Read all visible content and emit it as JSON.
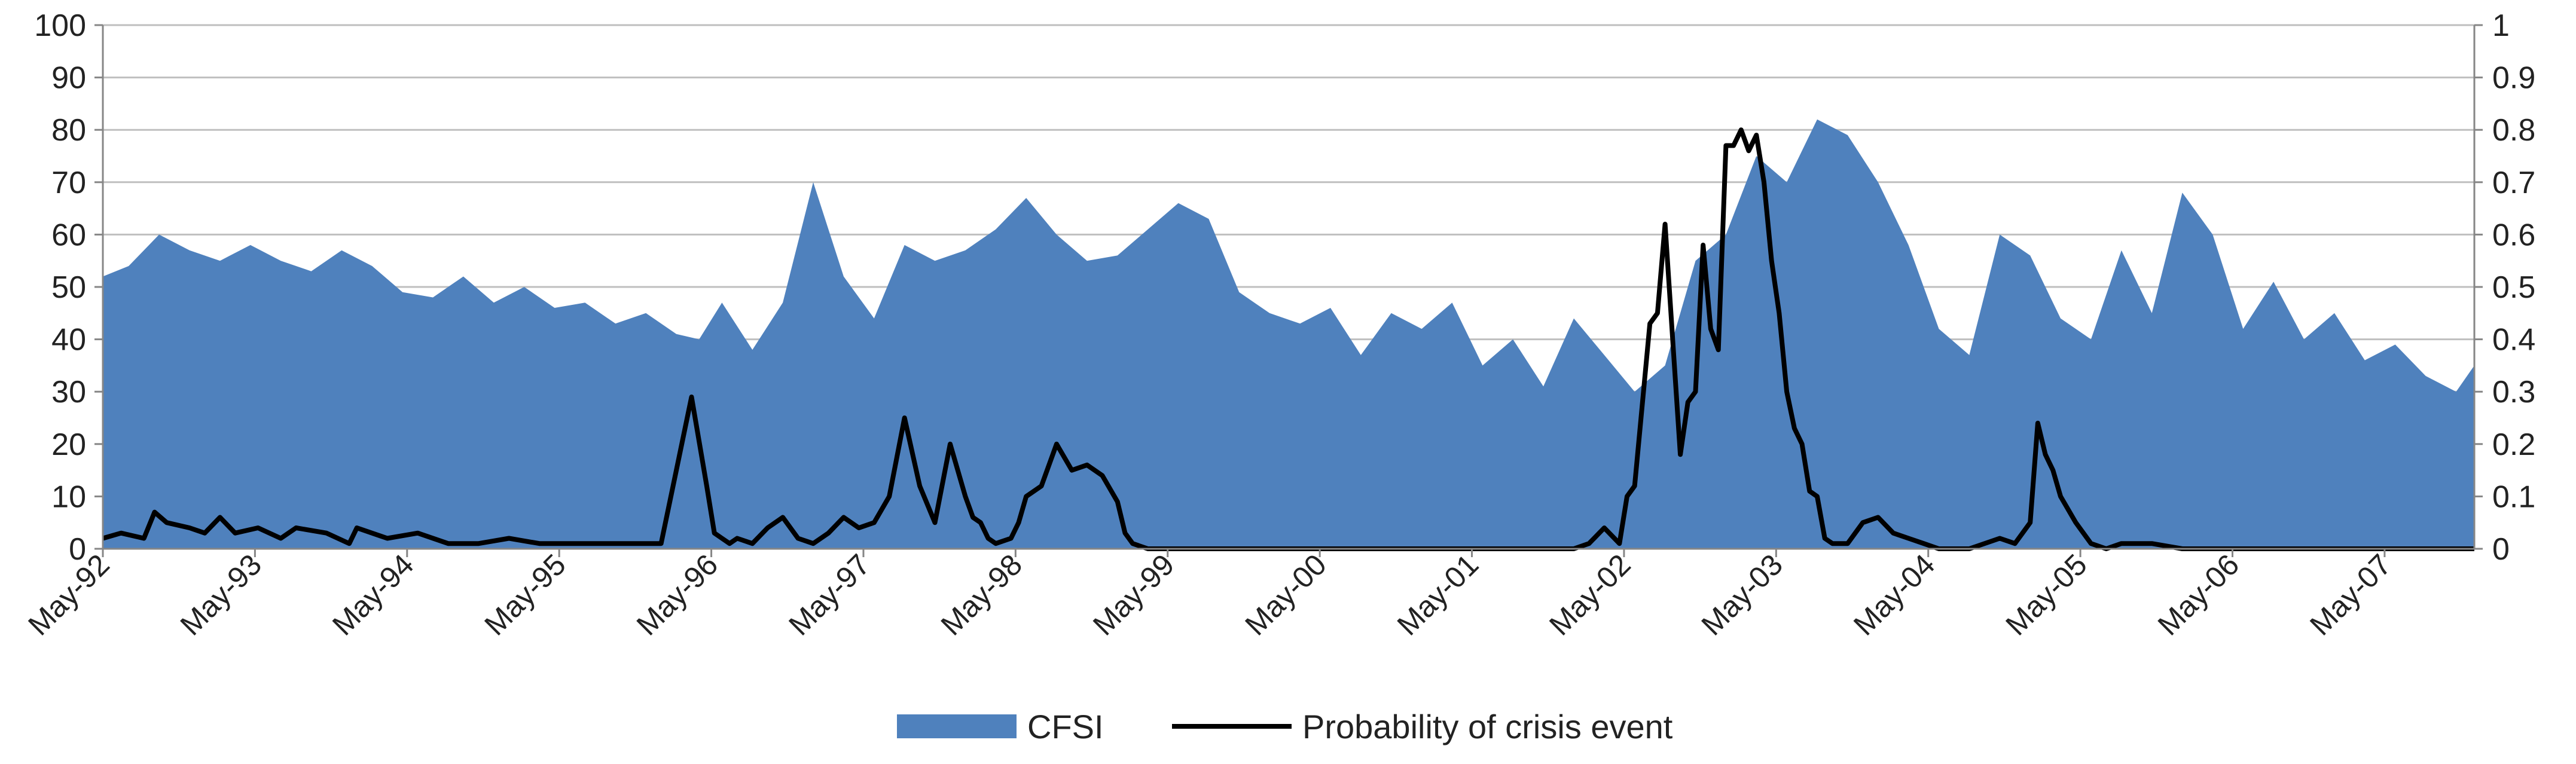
{
  "chart_data": {
    "type": "area",
    "title": "",
    "categories": [
      "May-92",
      "May-93",
      "May-94",
      "May-95",
      "May-96",
      "May-97",
      "May-98",
      "May-99",
      "May-00",
      "May-01",
      "May-02",
      "May-03",
      "May-04",
      "May-05",
      "May-06",
      "May-07"
    ],
    "y_left": {
      "label": "",
      "range": [
        0,
        100
      ],
      "ticks": [
        0,
        10,
        20,
        30,
        40,
        50,
        60,
        70,
        80,
        90,
        100
      ]
    },
    "y_right": {
      "label": "",
      "range": [
        0,
        1
      ],
      "ticks": [
        "0",
        "0.1",
        "0.2",
        "0.3",
        "0.4",
        "0.5",
        "0.6",
        "0.7",
        "0.8",
        "0.9",
        "1"
      ]
    },
    "x_range": [
      1992.33,
      2007.92
    ],
    "grid": true,
    "legend_position": "bottom",
    "series": [
      {
        "name": "CFSI",
        "type": "area",
        "axis": "left",
        "color": "#4F81BD",
        "x": [
          1992.33,
          1992.5,
          1992.7,
          1992.9,
          1993.1,
          1993.3,
          1993.5,
          1993.7,
          1993.9,
          1994.1,
          1994.3,
          1994.5,
          1994.7,
          1994.9,
          1995.1,
          1995.3,
          1995.5,
          1995.7,
          1995.9,
          1996.1,
          1996.25,
          1996.4,
          1996.6,
          1996.8,
          1997.0,
          1997.2,
          1997.4,
          1997.6,
          1997.8,
          1998.0,
          1998.2,
          1998.4,
          1998.6,
          1998.8,
          1999.0,
          1999.2,
          1999.4,
          1999.6,
          1999.8,
          2000.0,
          2000.2,
          2000.4,
          2000.6,
          2000.8,
          2001.0,
          2001.2,
          2001.4,
          2001.6,
          2001.8,
          2002.0,
          2002.2,
          2002.4,
          2002.6,
          2002.8,
          2003.0,
          2003.2,
          2003.4,
          2003.6,
          2003.8,
          2004.0,
          2004.2,
          2004.4,
          2004.6,
          2004.8,
          2005.0,
          2005.2,
          2005.4,
          2005.6,
          2005.8,
          2006.0,
          2006.2,
          2006.4,
          2006.6,
          2006.8,
          2007.0,
          2007.2,
          2007.4,
          2007.6,
          2007.8,
          2007.92
        ],
        "values": [
          52,
          54,
          60,
          57,
          55,
          58,
          55,
          53,
          57,
          54,
          49,
          48,
          52,
          47,
          50,
          46,
          47,
          43,
          45,
          41,
          40,
          47,
          38,
          47,
          70,
          52,
          44,
          58,
          55,
          57,
          61,
          67,
          60,
          55,
          56,
          61,
          66,
          63,
          49,
          45,
          43,
          46,
          37,
          45,
          42,
          47,
          35,
          40,
          31,
          44,
          37,
          30,
          35,
          55,
          60,
          75,
          70,
          82,
          79,
          70,
          58,
          42,
          37,
          60,
          56,
          44,
          40,
          57,
          45,
          68,
          60,
          42,
          51,
          40,
          45,
          36,
          39,
          33,
          30,
          35
        ]
      },
      {
        "name": "Probability of crisis event",
        "type": "line",
        "axis": "right",
        "color": "#000000",
        "x": [
          1992.33,
          1992.45,
          1992.6,
          1992.67,
          1992.75,
          1992.9,
          1993.0,
          1993.1,
          1993.2,
          1993.35,
          1993.5,
          1993.6,
          1993.8,
          1993.95,
          1994.0,
          1994.2,
          1994.4,
          1994.6,
          1994.8,
          1995.0,
          1995.2,
          1995.4,
          1995.6,
          1995.8,
          1996.0,
          1996.1,
          1996.2,
          1996.3,
          1996.35,
          1996.4,
          1996.45,
          1996.5,
          1996.6,
          1996.7,
          1996.8,
          1996.9,
          1997.0,
          1997.1,
          1997.2,
          1997.3,
          1997.4,
          1997.5,
          1997.6,
          1997.7,
          1997.8,
          1997.9,
          1998.0,
          1998.05,
          1998.1,
          1998.15,
          1998.2,
          1998.3,
          1998.35,
          1998.4,
          1998.5,
          1998.6,
          1998.7,
          1998.8,
          1998.9,
          1999.0,
          1999.05,
          1999.1,
          1999.2,
          1999.3,
          1999.35,
          1999.4,
          1999.5,
          1999.6,
          1999.7,
          1999.8,
          2000.0,
          2000.3,
          2000.6,
          2001.0,
          2001.3,
          2001.6,
          2002.0,
          2002.1,
          2002.2,
          2002.3,
          2002.35,
          2002.4,
          2002.5,
          2002.55,
          2002.6,
          2002.65,
          2002.7,
          2002.75,
          2002.8,
          2002.85,
          2002.9,
          2002.95,
          2003.0,
          2003.05,
          2003.1,
          2003.15,
          2003.2,
          2003.25,
          2003.3,
          2003.35,
          2003.4,
          2003.45,
          2003.5,
          2003.55,
          2003.6,
          2003.65,
          2003.7,
          2003.8,
          2003.9,
          2004.0,
          2004.1,
          2004.2,
          2004.3,
          2004.4,
          2004.6,
          2004.8,
          2004.9,
          2005.0,
          2005.05,
          2005.1,
          2005.15,
          2005.2,
          2005.3,
          2005.4,
          2005.5,
          2005.6,
          2005.8,
          2006.0,
          2006.3,
          2006.6,
          2007.0,
          2007.4,
          2007.92
        ],
        "values": [
          0.02,
          0.03,
          0.02,
          0.07,
          0.05,
          0.04,
          0.03,
          0.06,
          0.03,
          0.04,
          0.02,
          0.04,
          0.03,
          0.01,
          0.04,
          0.02,
          0.03,
          0.01,
          0.01,
          0.02,
          0.01,
          0.01,
          0.01,
          0.01,
          0.01,
          0.15,
          0.29,
          0.12,
          0.03,
          0.02,
          0.01,
          0.02,
          0.01,
          0.04,
          0.06,
          0.02,
          0.01,
          0.03,
          0.06,
          0.04,
          0.05,
          0.1,
          0.25,
          0.12,
          0.05,
          0.2,
          0.1,
          0.06,
          0.05,
          0.02,
          0.01,
          0.02,
          0.05,
          0.1,
          0.12,
          0.2,
          0.15,
          0.16,
          0.14,
          0.09,
          0.03,
          0.01,
          0.0,
          0.0,
          0.0,
          0.0,
          0.0,
          0.0,
          0.0,
          0.0,
          0.0,
          0.0,
          0.0,
          0.0,
          0.0,
          0.0,
          0.0,
          0.01,
          0.04,
          0.01,
          0.1,
          0.12,
          0.43,
          0.45,
          0.62,
          0.4,
          0.18,
          0.28,
          0.3,
          0.58,
          0.42,
          0.38,
          0.77,
          0.77,
          0.8,
          0.76,
          0.79,
          0.7,
          0.55,
          0.45,
          0.3,
          0.23,
          0.2,
          0.11,
          0.1,
          0.02,
          0.01,
          0.01,
          0.05,
          0.06,
          0.03,
          0.02,
          0.01,
          0.0,
          0.0,
          0.02,
          0.01,
          0.05,
          0.24,
          0.18,
          0.15,
          0.1,
          0.05,
          0.01,
          0.0,
          0.01,
          0.01,
          0.0,
          0.0,
          0.0,
          0.0,
          0.0,
          0.0
        ]
      }
    ]
  }
}
